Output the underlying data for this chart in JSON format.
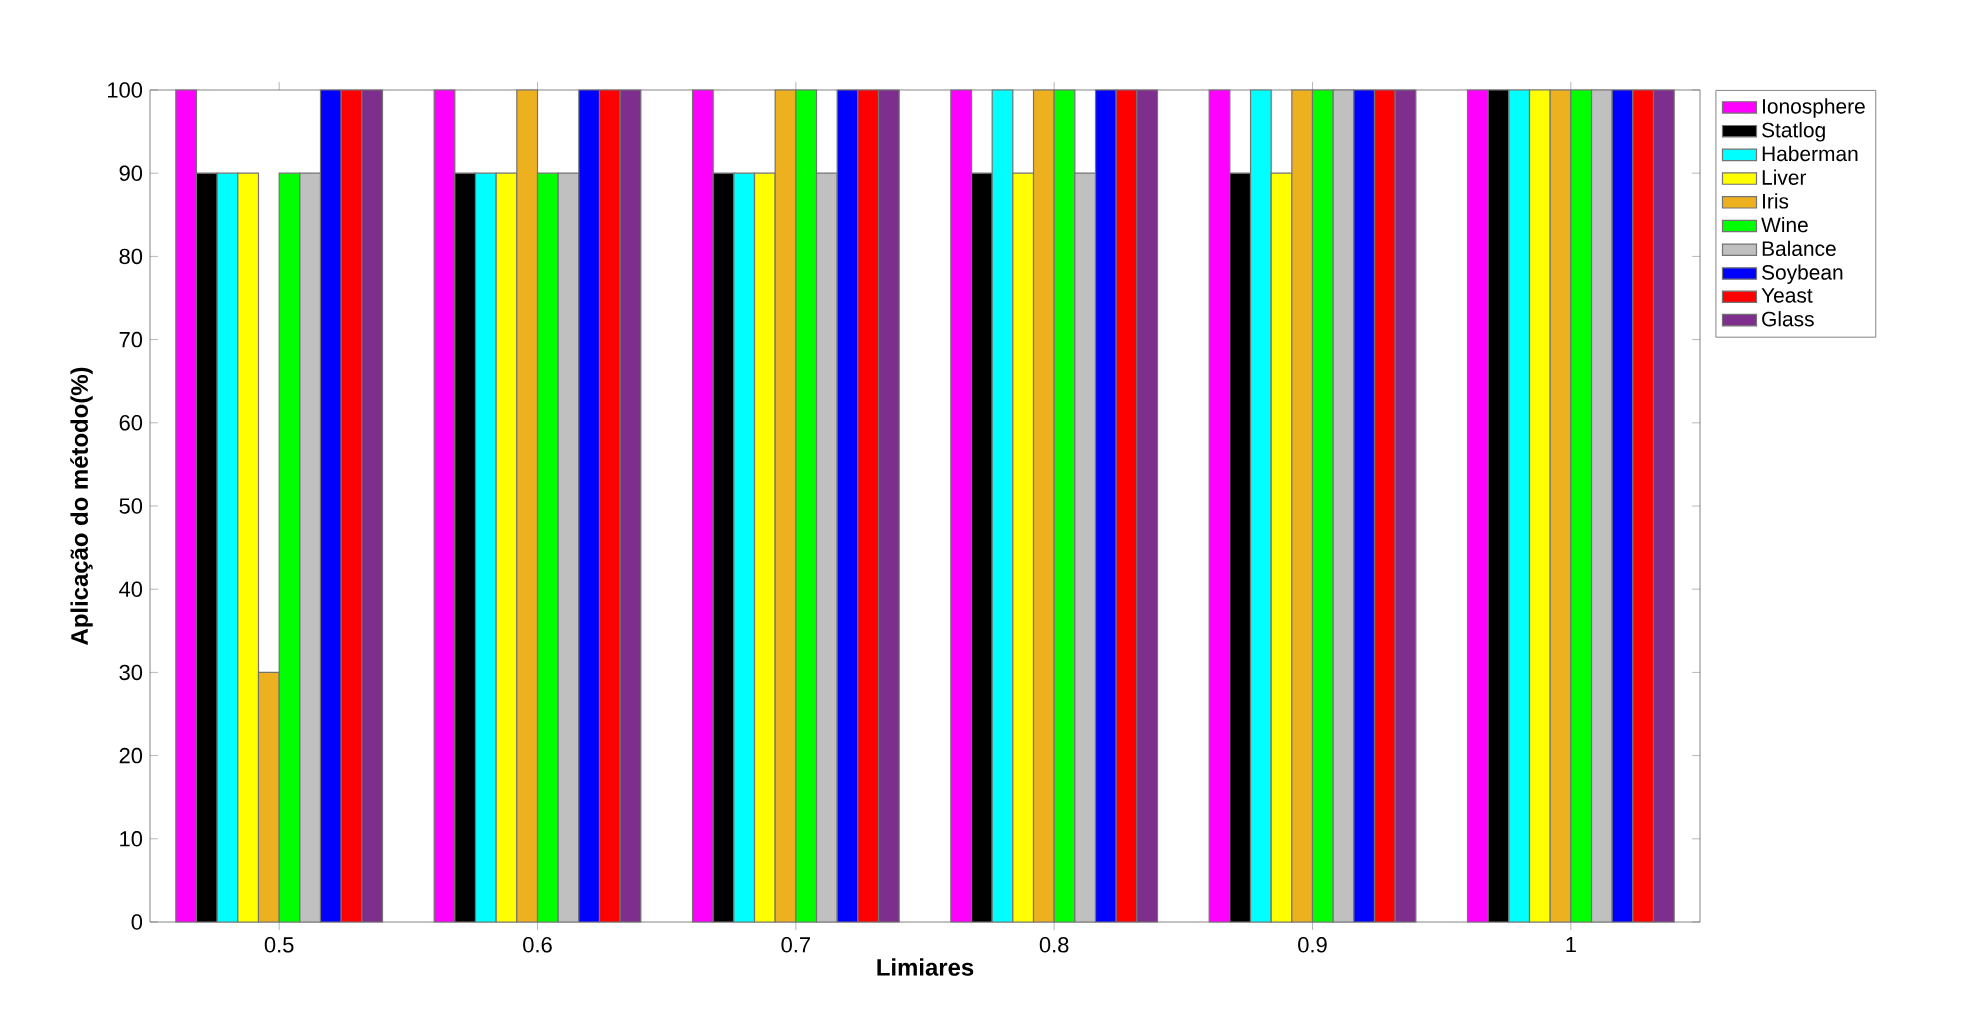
{
  "chart_data": {
    "type": "bar",
    "xlabel": "Limiares",
    "ylabel": "Aplicação do método(%)",
    "categories": [
      "0.5",
      "0.6",
      "0.7",
      "0.8",
      "0.9",
      "1"
    ],
    "series": [
      {
        "name": "Ionosphere",
        "color": "#ff00ff",
        "values": [
          100,
          100,
          100,
          100,
          100,
          100
        ]
      },
      {
        "name": "Statlog",
        "color": "#000000",
        "values": [
          90,
          90,
          90,
          90,
          90,
          100
        ]
      },
      {
        "name": "Haberman",
        "color": "#00ffff",
        "values": [
          90,
          90,
          90,
          100,
          100,
          100
        ]
      },
      {
        "name": "Liver",
        "color": "#ffff00",
        "values": [
          90,
          90,
          90,
          90,
          90,
          100
        ]
      },
      {
        "name": "Iris",
        "color": "#edb120",
        "values": [
          30,
          100,
          100,
          100,
          100,
          100
        ]
      },
      {
        "name": "Wine",
        "color": "#00ff00",
        "values": [
          90,
          90,
          100,
          100,
          100,
          100
        ]
      },
      {
        "name": "Balance",
        "color": "#c0c0c0",
        "values": [
          90,
          90,
          90,
          90,
          100,
          100
        ]
      },
      {
        "name": "Soybean",
        "color": "#0000ff",
        "values": [
          100,
          100,
          100,
          100,
          100,
          100
        ]
      },
      {
        "name": "Yeast",
        "color": "#ff0000",
        "values": [
          100,
          100,
          100,
          100,
          100,
          100
        ]
      },
      {
        "name": "Glass",
        "color": "#7e2f8e",
        "values": [
          100,
          100,
          100,
          100,
          100,
          100
        ]
      }
    ],
    "ylim": [
      0,
      100
    ],
    "yticks": [
      0,
      10,
      20,
      30,
      40,
      50,
      60,
      70,
      80,
      90,
      100
    ],
    "grid": false,
    "legend": "top right"
  }
}
